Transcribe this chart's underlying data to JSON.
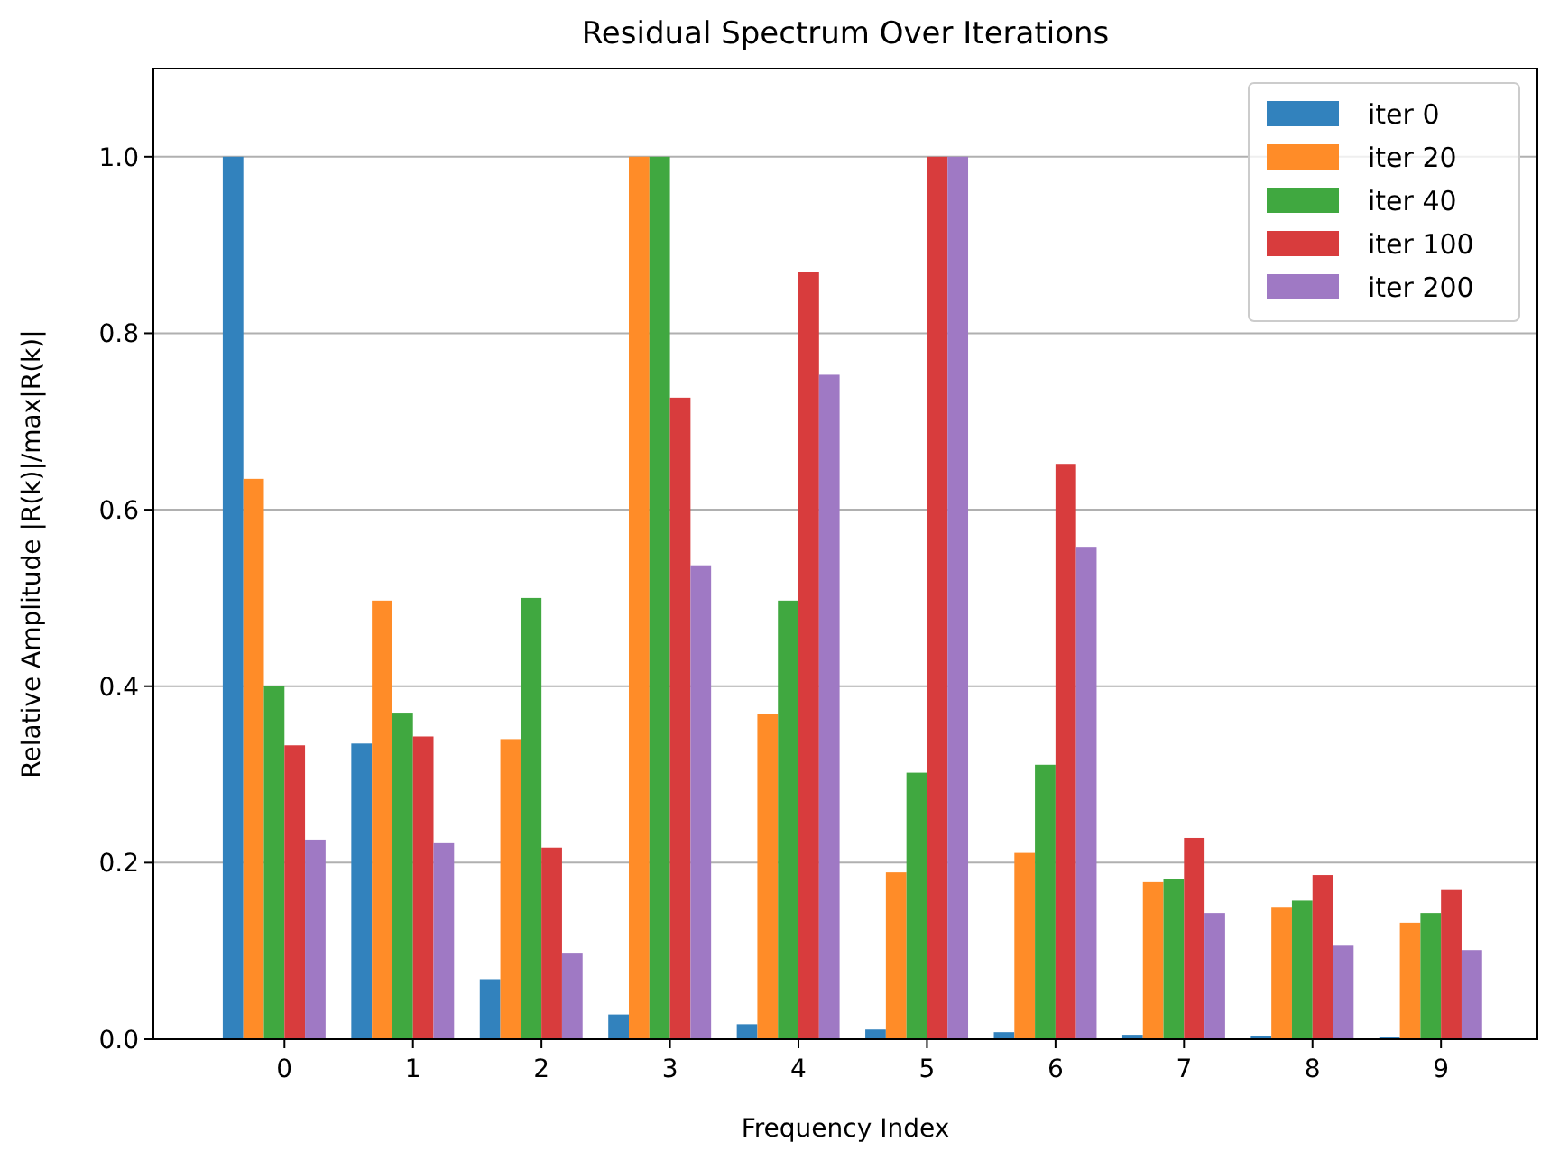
{
  "chart_data": {
    "type": "bar",
    "title": "Residual Spectrum Over Iterations",
    "xlabel": "Frequency Index",
    "ylabel": "Relative Amplitude |R(k)|/max|R(k)|",
    "categories": [
      "0",
      "1",
      "2",
      "3",
      "4",
      "5",
      "6",
      "7",
      "8",
      "9"
    ],
    "series": [
      {
        "name": "iter 0",
        "color": "#3282bd",
        "values": [
          1.0,
          0.335,
          0.068,
          0.028,
          0.017,
          0.011,
          0.008,
          0.005,
          0.004,
          0.002
        ]
      },
      {
        "name": "iter 20",
        "color": "#ff8c28",
        "values": [
          0.635,
          0.497,
          0.34,
          1.0,
          0.369,
          0.189,
          0.211,
          0.178,
          0.149,
          0.132
        ]
      },
      {
        "name": "iter 40",
        "color": "#40a840",
        "values": [
          0.4,
          0.37,
          0.5,
          1.0,
          0.497,
          0.302,
          0.311,
          0.181,
          0.157,
          0.143
        ]
      },
      {
        "name": "iter 100",
        "color": "#d83c3d",
        "values": [
          0.333,
          0.343,
          0.217,
          0.727,
          0.869,
          1.0,
          0.652,
          0.228,
          0.186,
          0.169
        ]
      },
      {
        "name": "iter 200",
        "color": "#9f79c4",
        "values": [
          0.226,
          0.223,
          0.097,
          0.537,
          0.753,
          1.0,
          0.558,
          0.143,
          0.106,
          0.101
        ]
      }
    ],
    "ylim": [
      0,
      1.1
    ],
    "yticks": [
      {
        "value": 0,
        "label": "0.0"
      },
      {
        "value": 0.2,
        "label": "0.2"
      },
      {
        "value": 0.4,
        "label": "0.4"
      },
      {
        "value": 0.6,
        "label": "0.6"
      },
      {
        "value": 0.8,
        "label": "0.8"
      },
      {
        "value": 1,
        "label": "1.0"
      }
    ],
    "grid": "y",
    "legend": "top right"
  }
}
